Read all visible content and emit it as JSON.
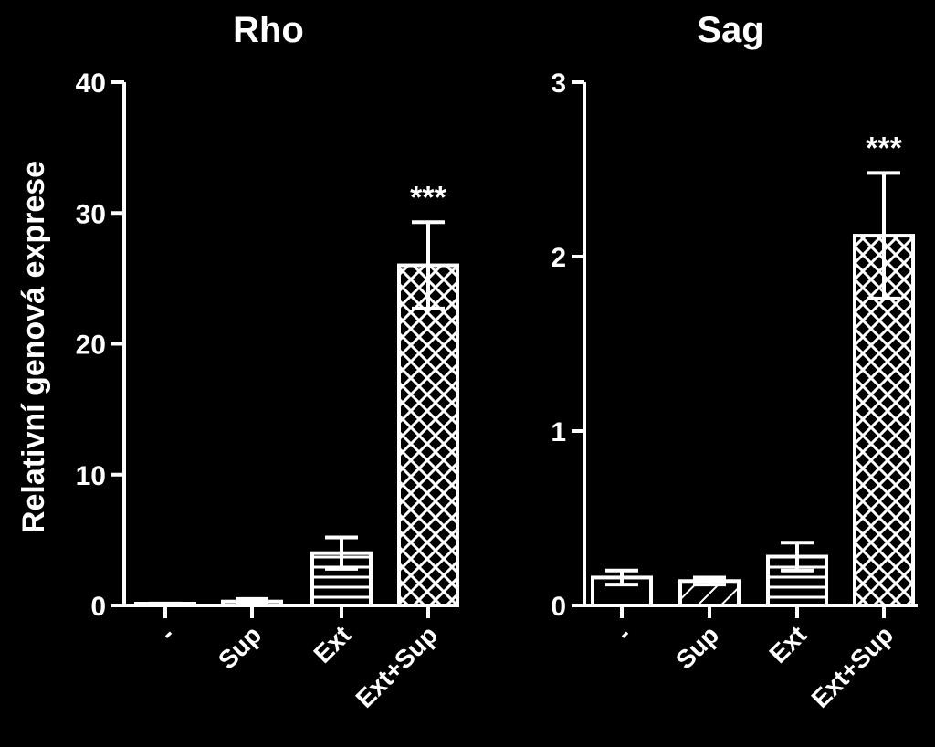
{
  "chart_data": {
    "type": "bar",
    "ylabel": "Relativní genová exprese",
    "panels": [
      {
        "title": "Rho",
        "categories": [
          "-",
          "Sup",
          "Ext",
          "Ext+Sup"
        ],
        "values": [
          0.1,
          0.3,
          4.0,
          26.0
        ],
        "errors": [
          0.05,
          0.2,
          1.2,
          3.3
        ],
        "patterns": [
          "none",
          "none",
          "horizontal",
          "crosshatch"
        ],
        "ylim": [
          0,
          40
        ],
        "yticks": [
          "0",
          "10",
          "20",
          "30",
          "40"
        ],
        "annotations": [
          {
            "category": "Ext+Sup",
            "text": "***"
          }
        ]
      },
      {
        "title": "Sag",
        "categories": [
          "-",
          "Sup",
          "Ext",
          "Ext+Sup"
        ],
        "values": [
          0.16,
          0.14,
          0.28,
          2.12
        ],
        "errors": [
          0.04,
          0.02,
          0.08,
          0.36
        ],
        "patterns": [
          "none",
          "diagonal",
          "horizontal",
          "crosshatch"
        ],
        "ylim": [
          0,
          3
        ],
        "yticks": [
          "0",
          "1",
          "2",
          "3"
        ],
        "annotations": [
          {
            "category": "Ext+Sup",
            "text": "***"
          }
        ]
      }
    ]
  }
}
